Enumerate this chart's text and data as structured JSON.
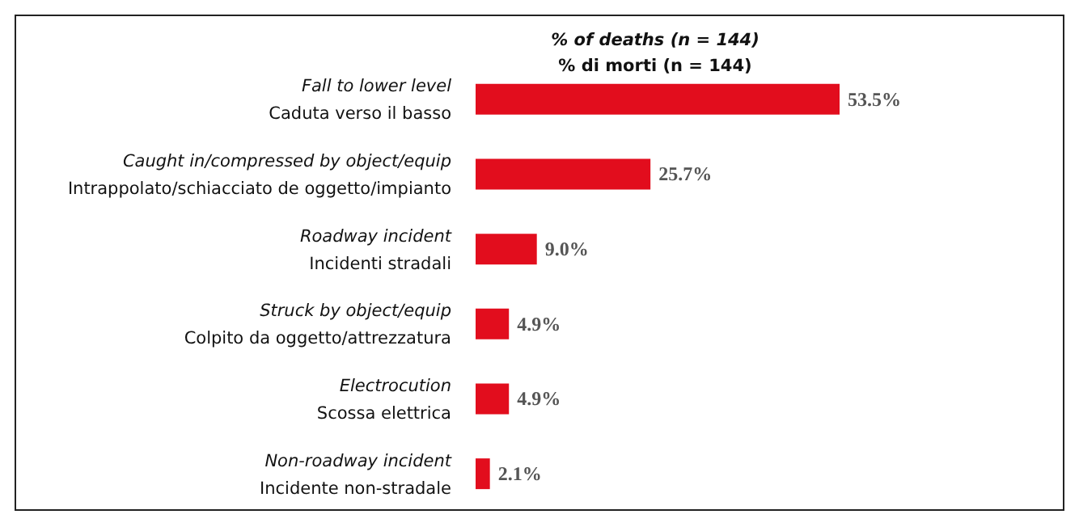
{
  "chart_data": {
    "type": "bar",
    "orientation": "horizontal",
    "title": "% of deaths (n = 144)",
    "subtitle": "% di morti (n = 144)",
    "categories": [
      "Fall to lower level\nCaduta verso il basso",
      "Caught in/compressed by object/equip\nIntrappolato/schiacciato de oggetto/impianto",
      "Roadway incident\nIncidenti stradali",
      "Struck by object/equip\nColpito da oggetto/attrezzatura",
      "Electrocution\nScossa elettrica",
      "Non-roadway incident\nIncidente non-stradale"
    ],
    "values": [
      53.5,
      25.7,
      9.0,
      4.9,
      4.9,
      2.1
    ],
    "value_labels": [
      "53.5%",
      "25.7%",
      "9.0%",
      "4.9%",
      "4.9%",
      "2.1%"
    ],
    "color": "#e20d1d",
    "grid": false,
    "tick_labels": "y"
  }
}
